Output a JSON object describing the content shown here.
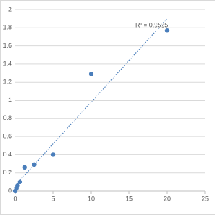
{
  "chart_data": {
    "type": "scatter",
    "x": [
      0,
      0.156,
      0.3125,
      0.625,
      1.25,
      2.5,
      5,
      10,
      20
    ],
    "series": [
      {
        "color": "#4a7ebb",
        "values": [
          0,
          0.03,
          0.06,
          0.1,
          0.26,
          0.29,
          0.4,
          1.29,
          1.77
        ]
      }
    ],
    "annotation": "R² = 0.9525",
    "trendline": true,
    "xlim": [
      0,
      25
    ],
    "xticks": [
      0,
      5,
      10,
      15,
      20,
      25
    ],
    "ylim": [
      0,
      2
    ],
    "yticks": [
      0,
      0.2,
      0.4,
      0.6,
      0.8,
      1,
      1.2,
      1.4,
      1.6,
      1.8,
      2
    ],
    "grid": true
  }
}
